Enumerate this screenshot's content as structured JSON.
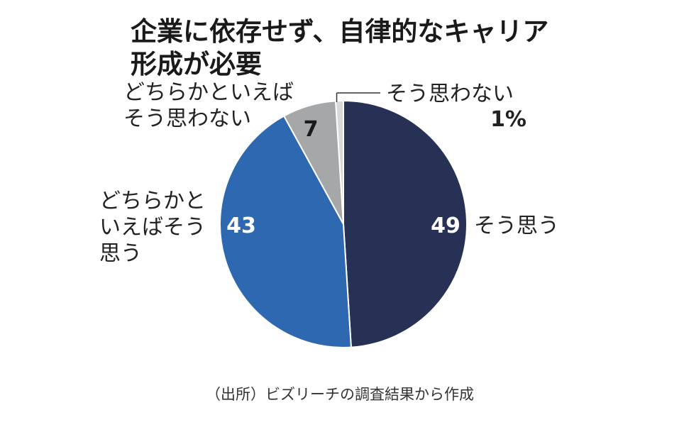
{
  "title": {
    "line1": "企業に依存せず、自律的なキャリア",
    "line2": "形成が必要"
  },
  "source": "（出所）ビズリーチの調査結果から作成",
  "chart_data": {
    "type": "pie",
    "title": "企業に依存せず、自律的なキャリア形成が必要",
    "unit": "%",
    "start_angle_deg": 0,
    "direction": "clockwise",
    "slices": [
      {
        "label_lines": [
          "そう思う"
        ],
        "value": 49,
        "value_label": "49",
        "color": "#263155",
        "value_color": "#ffffff"
      },
      {
        "label_lines": [
          "どちらかと",
          "いえばそう",
          "思う"
        ],
        "value": 43,
        "value_label": "43",
        "color": "#2e68b0",
        "value_color": "#ffffff"
      },
      {
        "label_lines": [
          "どちらかといえば",
          "そう思わない"
        ],
        "value": 7,
        "value_label": "7",
        "color": "#a5a7a9",
        "value_color": "#1a1a1a"
      },
      {
        "label_lines": [
          "そう思わない"
        ],
        "value": 1,
        "value_label": "1%",
        "color": "#d8d9db",
        "value_color": "#1a1a1a"
      }
    ]
  }
}
